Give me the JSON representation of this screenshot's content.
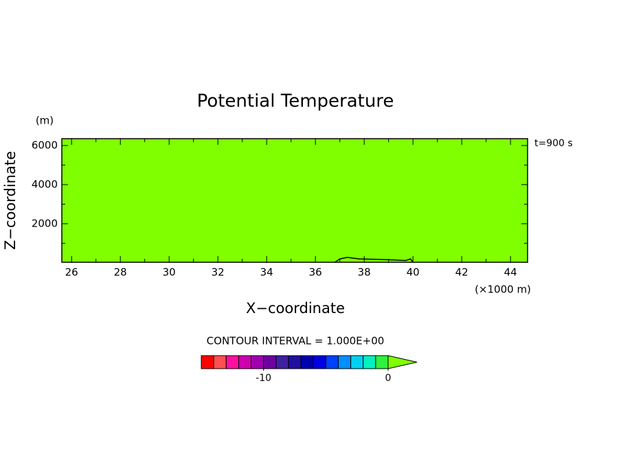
{
  "chart_data": {
    "type": "contour",
    "title": "Potential Temperature",
    "x_label": "X−coordinate",
    "x_unit": "(×1000 m)",
    "y_label": "Z−coordinate",
    "y_unit": "(m)",
    "time_label": "t=900 s",
    "fill_color": "#7fff00",
    "xlim": [
      25.6,
      44.7
    ],
    "ylim": [
      30,
      6350
    ],
    "xticks": [
      26,
      28,
      30,
      32,
      34,
      36,
      38,
      40,
      42,
      44
    ],
    "xticks_minor": [
      27,
      29,
      31,
      33,
      35,
      37,
      39,
      41,
      43
    ],
    "yticks": [
      2000,
      4000,
      6000
    ],
    "yticks_minor": [
      1000,
      3000,
      5000
    ],
    "series": [
      {
        "color": "#000000",
        "x": [
          36.8,
          37.0,
          37.3,
          37.8,
          38.5,
          39.2,
          39.7,
          39.9,
          40.0
        ],
        "values": [
          30,
          200,
          280,
          200,
          180,
          150,
          120,
          200,
          30
        ]
      }
    ],
    "colorbar": {
      "title": "CONTOUR INTERVAL = 1.000E+00",
      "lim": [
        -15,
        0
      ],
      "ticks": [
        -10,
        0
      ],
      "colors": [
        "#ff0000",
        "#ff5050",
        "#ff10a0",
        "#d000b0",
        "#a000b0",
        "#7000a0",
        "#4020a0",
        "#2010a0",
        "#0000b0",
        "#0000e0",
        "#0040ff",
        "#0090ff",
        "#00d0f0",
        "#00f0c0",
        "#30f040"
      ],
      "extend_color": "#7fff00"
    }
  }
}
